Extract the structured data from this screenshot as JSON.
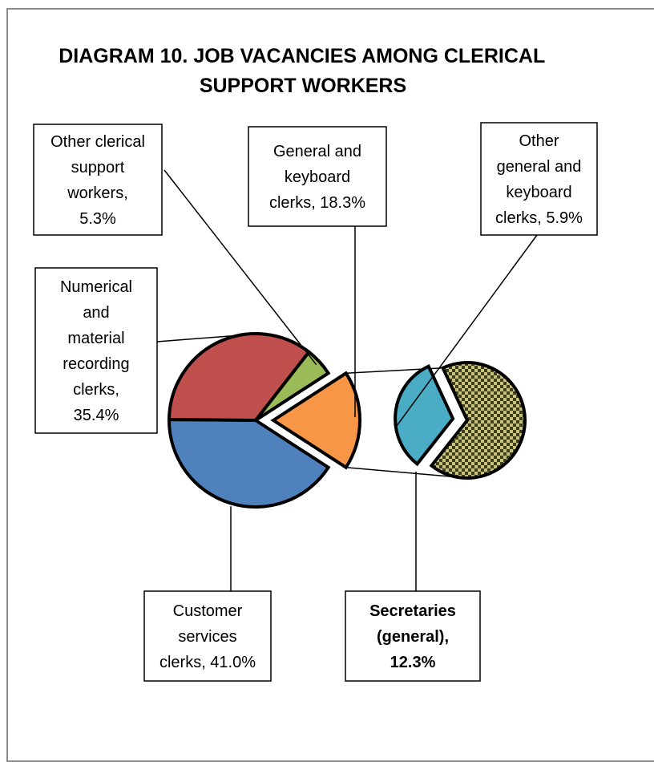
{
  "chart_data": {
    "type": "pie",
    "title": [
      "DIAGRAM 10. JOB VACANCIES AMONG CLERICAL",
      "SUPPORT WORKERS"
    ],
    "slices": [
      {
        "key": "customer",
        "label": [
          "Customer",
          "services",
          "clerks, 41.0%"
        ],
        "value": 41.0,
        "color": "#4f81bd",
        "exploded": false,
        "bold": false
      },
      {
        "key": "numerical",
        "label": [
          "Numerical",
          "and",
          "material",
          "recording",
          "clerks,",
          "35.4%"
        ],
        "value": 35.4,
        "color": "#c0504d",
        "exploded": false,
        "bold": false
      },
      {
        "key": "other-clerical",
        "label": [
          "Other clerical",
          "support",
          "workers,",
          "5.3%"
        ],
        "value": 5.3,
        "color": "#9bbb59",
        "exploded": false,
        "bold": false
      },
      {
        "key": "general-keyboard",
        "label": [
          "General and",
          "keyboard",
          "clerks, 18.3%"
        ],
        "value": 18.3,
        "color": "#f79646",
        "exploded": true,
        "bold": false
      }
    ],
    "breakdown": {
      "of": "general-keyboard",
      "slices": [
        {
          "key": "secretaries",
          "label": [
            "Secretaries",
            "(general),",
            "12.3%"
          ],
          "value": 12.3,
          "color": "#7f7f3f",
          "pattern": "checker",
          "bold": true
        },
        {
          "key": "other-general",
          "label": [
            "Other",
            "general and",
            "keyboard",
            "clerks, 5.9%"
          ],
          "value": 5.9,
          "color": "#4bacc6",
          "pattern": "none",
          "bold": false
        }
      ]
    }
  }
}
